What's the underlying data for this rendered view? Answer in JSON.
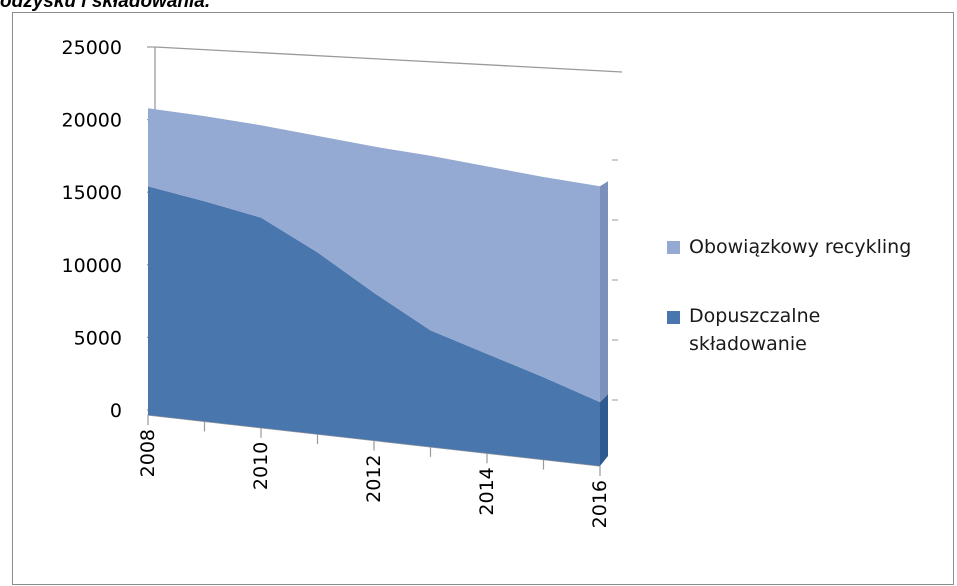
{
  "page": {
    "title": "odzysku i składowania."
  },
  "chart_data": {
    "type": "area",
    "stacked": true,
    "three_d": true,
    "categories": [
      2008,
      2009,
      2010,
      2011,
      2012,
      2013,
      2014,
      2015,
      2016
    ],
    "x_tick_labels": [
      "2008",
      "2010",
      "2012",
      "2014",
      "2016"
    ],
    "y_tick_labels": [
      "0",
      "5000",
      "10000",
      "15000",
      "20000",
      "25000"
    ],
    "ylim": [
      0,
      25000
    ],
    "grid": true,
    "legend_position": "right",
    "series": [
      {
        "name": "Dopuszczalne składowanie",
        "color": "#4a76ae",
        "values": [
          16100,
          15500,
          14800,
          12800,
          10400,
          8200,
          7000,
          5800,
          4500
        ]
      },
      {
        "name": "Obowiązkowy recykling",
        "color": "#94aad2",
        "values": [
          5500,
          6000,
          6500,
          8200,
          10300,
          12300,
          13200,
          14100,
          15200
        ]
      }
    ],
    "legend": [
      {
        "label": "Obowiązkowy recykling",
        "color": "#94aad2"
      },
      {
        "label_line1": "Dopuszczalne",
        "label_line2": "składowanie",
        "color": "#4a76ae"
      }
    ]
  }
}
